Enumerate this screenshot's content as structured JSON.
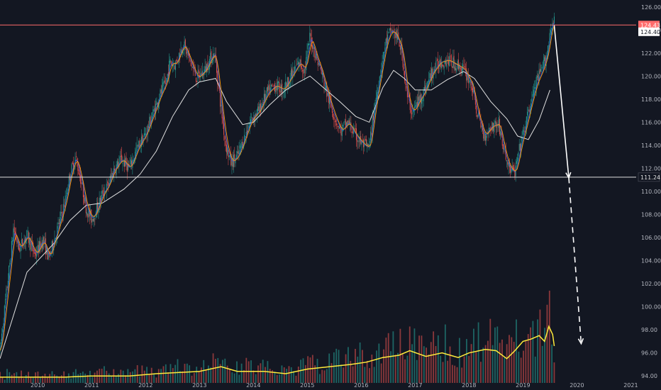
{
  "chart_data": {
    "type": "candlestick",
    "instrument": "",
    "title": "",
    "background": "#131722",
    "colors": {
      "up": "#26a69a",
      "down": "#ef5350",
      "ma_fast": "#ff9800",
      "ma_mid": "#2962ff",
      "ma_slow": "#e0e0e0",
      "volume_ma": "#ffeb3b",
      "resistance_line": "#ff6b6b",
      "support_line": "#e0e0e0",
      "arrow": "#ffffff",
      "axis_text": "#b2b5be"
    },
    "x_axis": {
      "ticks": [
        "2010",
        "2011",
        "2012",
        "2013",
        "2014",
        "2015",
        "2016",
        "2017",
        "2018",
        "2019",
        "2020",
        "2021"
      ],
      "range": [
        2009.3,
        2021.1
      ]
    },
    "y_axis": {
      "ticks": [
        "94.00",
        "96.00",
        "98.00",
        "100.00",
        "102.00",
        "104.00",
        "106.00",
        "108.00",
        "110.00",
        "112.00",
        "114.00",
        "116.00",
        "118.00",
        "120.00",
        "122.00",
        "124.00",
        "126.00"
      ],
      "range": [
        93.4,
        126.6
      ],
      "position": "right"
    },
    "price_path": [
      [
        2009.3,
        96.2
      ],
      [
        2009.4,
        100.5
      ],
      [
        2009.5,
        104.5
      ],
      [
        2009.55,
        106.8
      ],
      [
        2009.65,
        105.0
      ],
      [
        2009.8,
        106.2
      ],
      [
        2009.95,
        104.5
      ],
      [
        2010.1,
        105.8
      ],
      [
        2010.2,
        104.2
      ],
      [
        2010.35,
        106.5
      ],
      [
        2010.5,
        109.0
      ],
      [
        2010.6,
        111.5
      ],
      [
        2010.7,
        113.0
      ],
      [
        2010.8,
        111.0
      ],
      [
        2010.9,
        108.5
      ],
      [
        2011.0,
        107.6
      ],
      [
        2011.1,
        108.5
      ],
      [
        2011.2,
        109.8
      ],
      [
        2011.3,
        110.5
      ],
      [
        2011.4,
        111.8
      ],
      [
        2011.55,
        112.8
      ],
      [
        2011.7,
        112.0
      ],
      [
        2011.85,
        113.8
      ],
      [
        2012.0,
        115.0
      ],
      [
        2012.12,
        116.5
      ],
      [
        2012.25,
        118.2
      ],
      [
        2012.38,
        119.5
      ],
      [
        2012.45,
        121.2
      ],
      [
        2012.55,
        121.0
      ],
      [
        2012.7,
        122.8
      ],
      [
        2012.85,
        121.0
      ],
      [
        2012.95,
        119.8
      ],
      [
        2013.1,
        120.5
      ],
      [
        2013.2,
        121.5
      ],
      [
        2013.28,
        122.0
      ],
      [
        2013.38,
        118.0
      ],
      [
        2013.48,
        114.2
      ],
      [
        2013.58,
        112.5
      ],
      [
        2013.7,
        113.0
      ],
      [
        2013.82,
        114.5
      ],
      [
        2013.95,
        116.2
      ],
      [
        2014.1,
        117.0
      ],
      [
        2014.25,
        118.5
      ],
      [
        2014.4,
        119.2
      ],
      [
        2014.55,
        118.8
      ],
      [
        2014.7,
        120.0
      ],
      [
        2014.85,
        121.2
      ],
      [
        2014.95,
        120.5
      ],
      [
        2015.05,
        123.5
      ],
      [
        2015.15,
        121.8
      ],
      [
        2015.25,
        120.5
      ],
      [
        2015.38,
        118.2
      ],
      [
        2015.5,
        116.5
      ],
      [
        2015.62,
        115.2
      ],
      [
        2015.75,
        116.0
      ],
      [
        2015.9,
        114.8
      ],
      [
        2016.05,
        114.0
      ],
      [
        2016.15,
        113.8
      ],
      [
        2016.25,
        117.5
      ],
      [
        2016.35,
        120.2
      ],
      [
        2016.45,
        122.8
      ],
      [
        2016.55,
        124.0
      ],
      [
        2016.65,
        123.5
      ],
      [
        2016.75,
        122.2
      ],
      [
        2016.85,
        118.2
      ],
      [
        2016.95,
        116.8
      ],
      [
        2017.05,
        117.8
      ],
      [
        2017.15,
        118.5
      ],
      [
        2017.3,
        120.2
      ],
      [
        2017.45,
        121.2
      ],
      [
        2017.6,
        121.4
      ],
      [
        2017.75,
        121.0
      ],
      [
        2017.9,
        120.6
      ],
      [
        2018.05,
        119.2
      ],
      [
        2018.15,
        116.8
      ],
      [
        2018.28,
        114.8
      ],
      [
        2018.4,
        115.6
      ],
      [
        2018.55,
        115.9
      ],
      [
        2018.65,
        113.4
      ],
      [
        2018.75,
        112.0
      ],
      [
        2018.85,
        111.6
      ],
      [
        2018.95,
        114.0
      ],
      [
        2019.05,
        115.8
      ],
      [
        2019.15,
        117.8
      ],
      [
        2019.25,
        119.5
      ],
      [
        2019.35,
        120.5
      ],
      [
        2019.45,
        122.0
      ],
      [
        2019.52,
        124.5
      ],
      [
        2019.58,
        124.7
      ]
    ],
    "volume_ma_path": [
      [
        2009.3,
        93.9
      ],
      [
        2010.5,
        93.9
      ],
      [
        2011.0,
        94.0
      ],
      [
        2011.7,
        94.0
      ],
      [
        2012.2,
        94.2
      ],
      [
        2012.6,
        94.3
      ],
      [
        2013.0,
        94.4
      ],
      [
        2013.4,
        94.8
      ],
      [
        2013.7,
        94.4
      ],
      [
        2014.2,
        94.4
      ],
      [
        2014.6,
        94.2
      ],
      [
        2015.0,
        94.6
      ],
      [
        2015.4,
        94.8
      ],
      [
        2015.8,
        95.0
      ],
      [
        2016.1,
        95.2
      ],
      [
        2016.4,
        95.6
      ],
      [
        2016.7,
        95.8
      ],
      [
        2016.9,
        96.2
      ],
      [
        2017.2,
        95.7
      ],
      [
        2017.5,
        96.0
      ],
      [
        2017.8,
        95.6
      ],
      [
        2018.0,
        96.0
      ],
      [
        2018.3,
        96.3
      ],
      [
        2018.5,
        96.2
      ],
      [
        2018.7,
        95.5
      ],
      [
        2018.85,
        96.2
      ],
      [
        2019.0,
        97.0
      ],
      [
        2019.15,
        97.2
      ],
      [
        2019.3,
        97.5
      ],
      [
        2019.4,
        97.0
      ],
      [
        2019.48,
        98.3
      ],
      [
        2019.55,
        97.6
      ],
      [
        2019.58,
        96.6
      ]
    ],
    "ma_slow_path": [
      [
        2009.3,
        95.5
      ],
      [
        2009.8,
        103.0
      ],
      [
        2010.3,
        105.5
      ],
      [
        2010.6,
        107.5
      ],
      [
        2010.9,
        108.8
      ],
      [
        2011.2,
        109.0
      ],
      [
        2011.6,
        110.2
      ],
      [
        2011.9,
        111.5
      ],
      [
        2012.2,
        113.5
      ],
      [
        2012.5,
        116.5
      ],
      [
        2012.8,
        118.8
      ],
      [
        2013.0,
        119.5
      ],
      [
        2013.3,
        119.8
      ],
      [
        2013.5,
        117.8
      ],
      [
        2013.8,
        115.8
      ],
      [
        2014.0,
        116.0
      ],
      [
        2014.3,
        117.5
      ],
      [
        2014.6,
        118.8
      ],
      [
        2014.85,
        119.5
      ],
      [
        2015.05,
        120.0
      ],
      [
        2015.3,
        119.0
      ],
      [
        2015.6,
        117.8
      ],
      [
        2015.9,
        116.5
      ],
      [
        2016.15,
        116.0
      ],
      [
        2016.4,
        119.0
      ],
      [
        2016.6,
        120.5
      ],
      [
        2016.8,
        119.8
      ],
      [
        2017.0,
        118.8
      ],
      [
        2017.3,
        118.8
      ],
      [
        2017.6,
        119.7
      ],
      [
        2017.9,
        120.4
      ],
      [
        2018.1,
        119.8
      ],
      [
        2018.4,
        117.8
      ],
      [
        2018.7,
        116.3
      ],
      [
        2018.9,
        114.8
      ],
      [
        2019.1,
        114.5
      ],
      [
        2019.3,
        116.2
      ],
      [
        2019.5,
        118.8
      ]
    ],
    "horizontal_levels": [
      {
        "value": 124.43,
        "label": "124.43",
        "role": "resistance"
      },
      {
        "value": 111.24,
        "label": "111.24",
        "role": "support"
      }
    ],
    "current_price": {
      "value": 124.4,
      "label": "124.40"
    },
    "projection_arrows": [
      {
        "style": "solid",
        "from": [
          2019.58,
          124.4
        ],
        "to": [
          2019.85,
          111.2
        ]
      },
      {
        "style": "dashed",
        "from": [
          2019.85,
          111.2
        ],
        "to": [
          2020.08,
          96.8
        ]
      }
    ],
    "volume_bars": {
      "count": 235,
      "end_x": 2019.58,
      "peak_height_price_units": 8.0
    }
  }
}
